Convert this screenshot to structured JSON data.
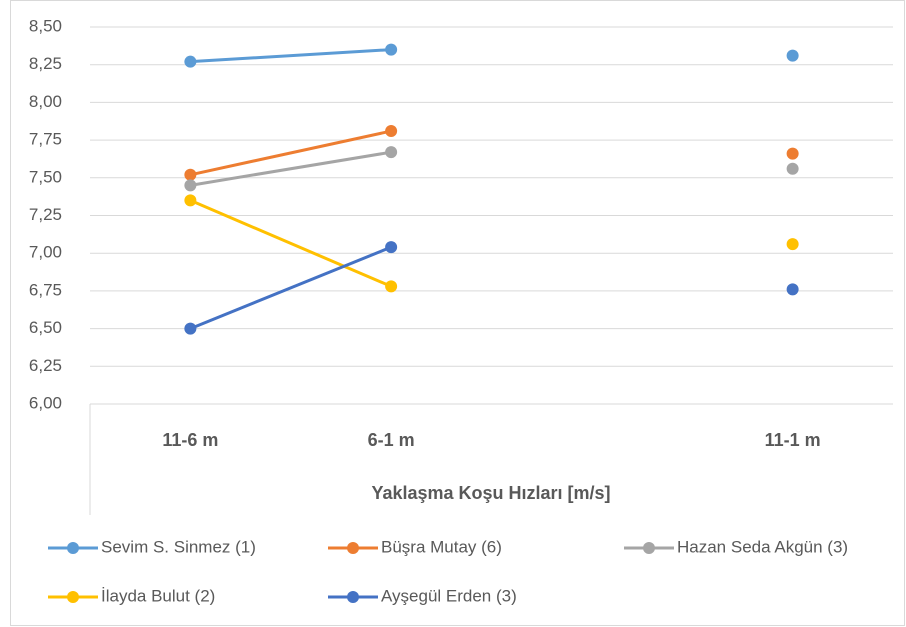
{
  "chart_data": {
    "type": "line",
    "x_label": "Yaklaşma Koşu Hızları [m/s]",
    "categories": [
      "11-6 m",
      "6-1 m",
      null,
      "11-1 m"
    ],
    "series": [
      {
        "name": "Sevim S. Sinmez (1)",
        "color": "#5b9bd5",
        "values": [
          8.27,
          8.35,
          null,
          8.31
        ]
      },
      {
        "name": "Büşra Mutay (6)",
        "color": "#ed7d31",
        "values": [
          7.52,
          7.81,
          null,
          7.66
        ]
      },
      {
        "name": "Hazan Seda Akgün (3)",
        "color": "#a5a5a5",
        "values": [
          7.45,
          7.67,
          null,
          7.56
        ]
      },
      {
        "name": "İlayda Bulut (2)",
        "color": "#ffc000",
        "values": [
          7.35,
          6.78,
          null,
          7.06
        ]
      },
      {
        "name": "Ayşegül Erden (3)",
        "color": "#4472c4",
        "values": [
          6.5,
          7.04,
          null,
          6.76
        ]
      }
    ],
    "ylim": [
      6,
      8.5
    ],
    "yticks": [
      {
        "value": 6,
        "label": "6,00"
      },
      {
        "value": 6.25,
        "label": "6,25"
      },
      {
        "value": 6.5,
        "label": "6,50"
      },
      {
        "value": 6.75,
        "label": "6,75"
      },
      {
        "value": 7,
        "label": "7,00"
      },
      {
        "value": 7.25,
        "label": "7,25"
      },
      {
        "value": 7.5,
        "label": "7,50"
      },
      {
        "value": 7.75,
        "label": "7,75"
      },
      {
        "value": 8,
        "label": "8,00"
      },
      {
        "value": 8.25,
        "label": "8,25"
      },
      {
        "value": 8.5,
        "label": "8,50"
      }
    ],
    "grid": true,
    "legend_position": "bottom"
  }
}
